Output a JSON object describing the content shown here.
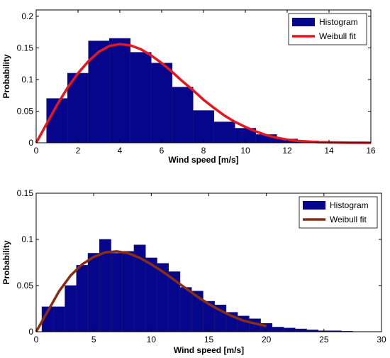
{
  "colors": {
    "bar": "#06068c",
    "barEdge": "#1a1a70"
  },
  "chart_data": [
    {
      "type": "bar",
      "xlabel": "Wind speed [m/s]",
      "ylabel": "Probability",
      "xlim": [
        0,
        16
      ],
      "ylim": [
        0,
        0.21
      ],
      "xticks": [
        0,
        2,
        4,
        6,
        8,
        10,
        12,
        14,
        16
      ],
      "yticks": [
        0,
        0.05,
        0.1,
        0.15,
        0.2
      ],
      "ytick_labels": [
        "0",
        "0.05",
        "0.1",
        "0.15",
        "0.2"
      ],
      "bin_edges": [
        0.5,
        1.5,
        2.5,
        3.5,
        4.5,
        5.5,
        6.5,
        7.5,
        8.5,
        9.5,
        10.5,
        11.5,
        12.5,
        13.5,
        14.5,
        15.5
      ],
      "values": [
        0.07,
        0.11,
        0.161,
        0.165,
        0.143,
        0.126,
        0.088,
        0.051,
        0.033,
        0.023,
        0.013,
        0.006,
        0.003,
        0.001,
        0.0005
      ],
      "fit": {
        "x": [
          0,
          0.5,
          1,
          1.5,
          2,
          2.5,
          3,
          3.5,
          4,
          4.5,
          5,
          5.5,
          6,
          6.5,
          7,
          7.5,
          8,
          8.5,
          9,
          9.5,
          10,
          10.5,
          11,
          11.5,
          12,
          12.5,
          13,
          13.5,
          14,
          14.5,
          15,
          15.5,
          16
        ],
        "y": [
          0,
          0.03,
          0.06,
          0.087,
          0.11,
          0.129,
          0.144,
          0.153,
          0.156,
          0.154,
          0.148,
          0.138,
          0.126,
          0.112,
          0.097,
          0.083,
          0.068,
          0.055,
          0.043,
          0.033,
          0.025,
          0.018,
          0.012,
          0.008,
          0.005,
          0.003,
          0.002,
          0.001,
          0.0007,
          0.0004,
          0.0002,
          0.0001,
          0
        ]
      },
      "fit_color": "#e8151c",
      "legend": {
        "placement": "top-right",
        "entries": [
          "Histogram",
          "Weibull fit"
        ]
      }
    },
    {
      "type": "bar",
      "xlabel": "Wind speed [m/s]",
      "ylabel": "Probability",
      "xlim": [
        0,
        30
      ],
      "ylim": [
        0,
        0.15
      ],
      "xticks": [
        0,
        5,
        10,
        15,
        20,
        25,
        30
      ],
      "yticks": [
        0,
        0.05,
        0.1,
        0.15
      ],
      "ytick_labels": [
        "0",
        "0.05",
        "0.1",
        "0.15"
      ],
      "bin_edges": [
        0.5,
        1.5,
        2.5,
        3.5,
        4.5,
        5.5,
        6.5,
        7.5,
        8.5,
        9.5,
        10.5,
        11.5,
        12.5,
        13.5,
        14.5,
        15.5,
        16.5,
        17.5,
        18.5,
        19.5,
        20.5,
        21.5,
        22.5,
        23.5,
        24.5,
        25.5,
        26.5,
        27.5
      ],
      "values": [
        0.027,
        0.027,
        0.05,
        0.072,
        0.085,
        0.1,
        0.085,
        0.087,
        0.094,
        0.08,
        0.074,
        0.065,
        0.048,
        0.044,
        0.033,
        0.029,
        0.021,
        0.017,
        0.014,
        0.009,
        0.005,
        0.004,
        0.003,
        0.002,
        0.001,
        0.001,
        0.0005
      ],
      "fit": {
        "x": [
          0,
          1,
          2,
          3,
          4,
          5,
          6,
          7,
          8,
          9,
          10,
          11,
          12,
          13,
          14,
          15,
          16,
          17,
          18,
          19,
          20
        ],
        "y": [
          0,
          0.022,
          0.044,
          0.061,
          0.073,
          0.081,
          0.086,
          0.087,
          0.085,
          0.08,
          0.073,
          0.065,
          0.056,
          0.047,
          0.038,
          0.03,
          0.023,
          0.017,
          0.012,
          0.009,
          0.006
        ]
      },
      "fit_color": "#8b2c12",
      "legend": {
        "placement": "top-right",
        "entries": [
          "Histogram",
          "Weibull fit"
        ]
      }
    }
  ]
}
